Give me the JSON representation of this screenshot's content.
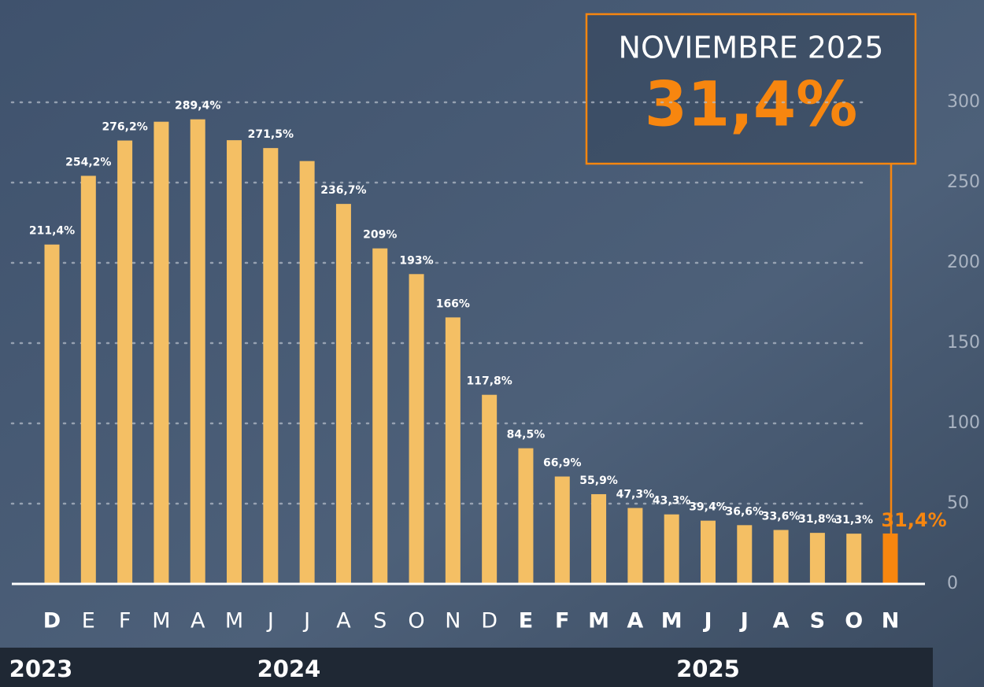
{
  "chart_data": {
    "type": "bar",
    "annotation_title": "NOVIEMBRE 2025",
    "annotation_value": "31,4%",
    "categories": [
      "D",
      "E",
      "F",
      "M",
      "A",
      "M",
      "J",
      "J",
      "A",
      "S",
      "O",
      "N",
      "D",
      "E",
      "F",
      "M",
      "A",
      "M",
      "J",
      "J",
      "A",
      "S",
      "O",
      "N"
    ],
    "years": [
      "2023",
      "2024",
      "2025"
    ],
    "values": [
      211.4,
      254.2,
      276.2,
      287.9,
      289.4,
      276.4,
      271.5,
      263.4,
      236.7,
      209,
      193,
      166,
      117.8,
      84.5,
      66.9,
      55.9,
      47.3,
      43.3,
      39.4,
      36.6,
      33.6,
      31.8,
      31.3,
      31.4
    ],
    "value_labels": [
      "211,4%",
      "254,2%",
      "276,2%",
      null,
      "289,4%",
      null,
      "271,5%",
      null,
      "236,7%",
      "209%",
      "193%",
      "166%",
      "117,8%",
      "84,5%",
      "66,9%",
      "55,9%",
      "47,3%",
      "43,3%",
      "39,4%",
      "36,6%",
      "33,6%",
      "31,8%",
      "31,3%",
      "31,4%"
    ],
    "color": "#f4bf64",
    "highlight_color": "#f7860f",
    "ylim": [
      0,
      300
    ],
    "yticks": [
      0,
      50,
      100,
      150,
      200,
      250,
      300
    ],
    "grid": true
  }
}
